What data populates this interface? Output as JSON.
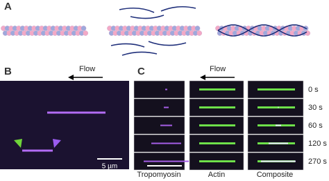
{
  "panels": {
    "a": {
      "label": "A"
    },
    "b": {
      "label": "B",
      "flow": "Flow",
      "scale_bar": "5 µm"
    },
    "c": {
      "label": "C",
      "flow": "Flow",
      "times": [
        "0 s",
        "30 s",
        "60 s",
        "120 s",
        "270 s"
      ],
      "columns": [
        "Tropomyosin",
        "Actin",
        "Composite"
      ]
    }
  }
}
